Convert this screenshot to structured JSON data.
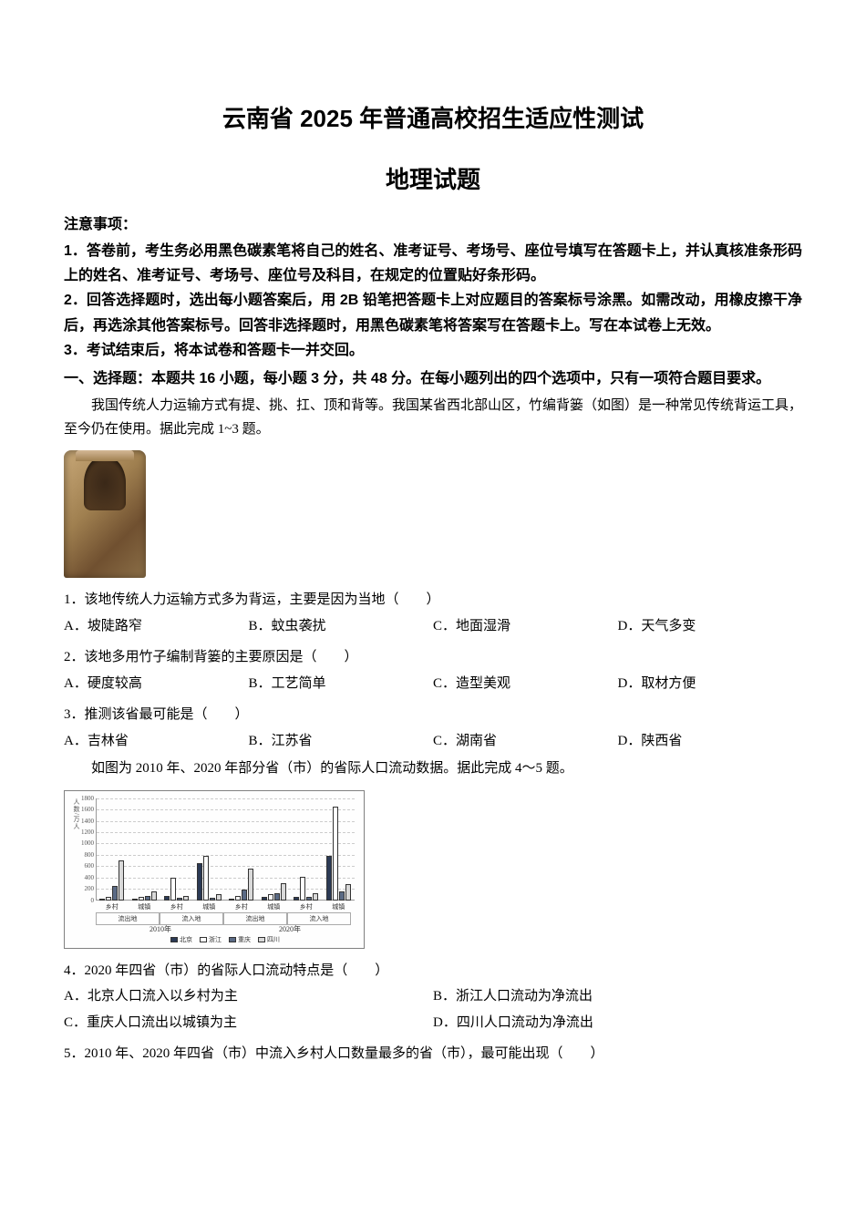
{
  "title_main": "云南省 2025 年普通高校招生适应性测试",
  "title_sub": "地理试题",
  "notice_heading": "注意事项：",
  "notice_items": [
    "1．答卷前，考生务必用黑色碳素笔将自己的姓名、准考证号、考场号、座位号填写在答题卡上，并认真核准条形码上的姓名、准考证号、考场号、座位号及科目，在规定的位置贴好条形码。",
    "2．回答选择题时，选出每小题答案后，用 2B 铅笔把答题卡上对应题目的答案标号涂黑。如需改动，用橡皮擦干净后，再选涂其他答案标号。回答非选择题时，用黑色碳素笔将答案写在答题卡上。写在本试卷上无效。",
    "3．考试结束后，将本试卷和答题卡一并交回。"
  ],
  "section1_heading": "一、选择题：本题共 16 小题，每小题 3 分，共 48 分。在每小题列出的四个选项中，只有一项符合题目要求。",
  "passage1": "我国传统人力运输方式有提、挑、扛、顶和背等。我国某省西北部山区，竹编背篓（如图）是一种常见传统背运工具，至今仍在使用。据此完成 1~3 题。",
  "q1": {
    "stem": "1．该地传统人力运输方式多为背运，主要是因为当地（　　）",
    "options": [
      "A．坡陡路窄",
      "B．蚊虫袭扰",
      "C．地面湿滑",
      "D．天气多变"
    ]
  },
  "q2": {
    "stem": "2．该地多用竹子编制背篓的主要原因是（　　）",
    "options": [
      "A．硬度较高",
      "B．工艺简单",
      "C．造型美观",
      "D．取材方便"
    ]
  },
  "q3": {
    "stem": "3．推测该省最可能是（　　）",
    "options": [
      "A．吉林省",
      "B．江苏省",
      "C．湖南省",
      "D．陕西省"
    ]
  },
  "passage2": "如图为 2010 年、2020 年部分省（市）的省际人口流动数据。据此完成 4～5 题。",
  "chart": {
    "y_axis_title": "人数/万人",
    "y_max": 1800,
    "y_ticks": [
      0,
      200,
      400,
      600,
      800,
      1000,
      1200,
      1400,
      1600,
      1800
    ],
    "x_sublabels": [
      "乡村",
      "城镇",
      "乡村",
      "城镇",
      "乡村",
      "城镇",
      "乡村",
      "城镇"
    ],
    "x_sections": [
      "流出地",
      "流入地",
      "流出地",
      "流入地"
    ],
    "years": [
      "2010年",
      "2020年"
    ],
    "legend": [
      "北京",
      "浙江",
      "重庆",
      "四川"
    ],
    "colors": {
      "beijing": "#2b3a55",
      "zhejiang": "#ffffff",
      "chongqing": "#5a6a85",
      "sichuan": "#d9d9d9"
    },
    "data_2010": {
      "outflow_rural": {
        "beijing": 10,
        "zhejiang": 60,
        "chongqing": 250,
        "sichuan": 700
      },
      "outflow_urban": {
        "beijing": 30,
        "zhejiang": 60,
        "chongqing": 80,
        "sichuan": 150
      },
      "inflow_rural": {
        "beijing": 80,
        "zhejiang": 400,
        "chongqing": 40,
        "sichuan": 80
      },
      "inflow_urban": {
        "beijing": 650,
        "zhejiang": 780,
        "chongqing": 50,
        "sichuan": 100
      }
    },
    "data_2020": {
      "outflow_rural": {
        "beijing": 10,
        "zhejiang": 70,
        "chongqing": 180,
        "sichuan": 550
      },
      "outflow_urban": {
        "beijing": 60,
        "zhejiang": 110,
        "chongqing": 120,
        "sichuan": 300
      },
      "inflow_rural": {
        "beijing": 60,
        "zhejiang": 420,
        "chongqing": 60,
        "sichuan": 120
      },
      "inflow_urban": {
        "beijing": 780,
        "zhejiang": 1650,
        "chongqing": 150,
        "sichuan": 280
      }
    }
  },
  "q4": {
    "stem": "4．2020 年四省（市）的省际人口流动特点是（　　）",
    "options": [
      "A．北京人口流入以乡村为主",
      "B．浙江人口流动为净流出",
      "C．重庆人口流出以城镇为主",
      "D．四川人口流动为净流出"
    ]
  },
  "q5": {
    "stem": "5．2010 年、2020 年四省（市）中流入乡村人口数量最多的省（市），最可能出现（　　）"
  }
}
